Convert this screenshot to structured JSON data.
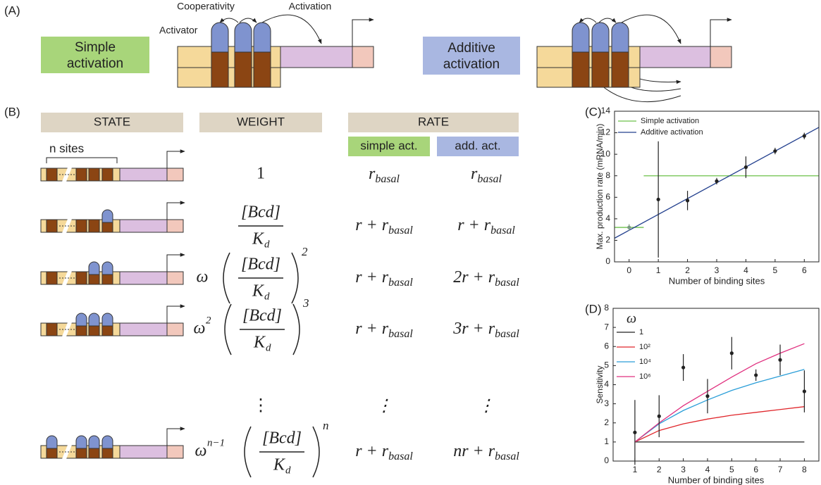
{
  "panel_a": {
    "label": "(A)",
    "simple_box": [
      "Simple",
      "activation"
    ],
    "additive_box": [
      "Additive",
      "activation"
    ],
    "cooperativity": "Cooperativity",
    "activation": "Activation",
    "activator": "Activator"
  },
  "panel_b": {
    "label": "(B)",
    "headers": {
      "state": "STATE",
      "weight": "WEIGHT",
      "rate": "RATE",
      "simple": "simple act.",
      "additive": "add. act."
    },
    "n_sites": "n sites",
    "rows": [
      {
        "weight": {
          "text": "1"
        },
        "simple": {
          "main": "r",
          "sub": "basal"
        },
        "additive": {
          "main": "r",
          "sub": "basal"
        }
      },
      {
        "weight": {
          "num": "[Bcd]",
          "den": "K",
          "den_sub": "d"
        },
        "simple": {
          "main": "r + r",
          "sub": "basal"
        },
        "additive": {
          "main": "r + r",
          "sub": "basal"
        }
      },
      {
        "weight": {
          "prefix": "ω",
          "num": "[Bcd]",
          "den": "K",
          "den_sub": "d",
          "power": "2"
        },
        "simple": {
          "main": "r + r",
          "sub": "basal"
        },
        "additive": {
          "main": "2r + r",
          "sub": "basal"
        }
      },
      {
        "weight": {
          "prefix": "ω",
          "prefix_sup": "2",
          "num": "[Bcd]",
          "den": "K",
          "den_sub": "d",
          "power": "3"
        },
        "simple": {
          "main": "r + r",
          "sub": "basal"
        },
        "additive": {
          "main": "3r + r",
          "sub": "basal"
        }
      },
      {
        "weight": {
          "text": "⋮"
        },
        "simple": {
          "main": "⋮"
        },
        "additive": {
          "main": "⋮"
        }
      },
      {
        "weight": {
          "prefix": "ω",
          "prefix_sup": "n−1",
          "num": "[Bcd]",
          "den": "K",
          "den_sub": "d",
          "power": "n"
        },
        "simple": {
          "main": "r + r",
          "sub": "basal"
        },
        "additive": {
          "main": "nr + r",
          "sub": "basal"
        }
      }
    ]
  },
  "chart_data": [
    {
      "type": "line",
      "label": "(C)",
      "xlabel": "Number of binding sites",
      "ylabel": "Max. production rate (mRNA/min)",
      "xlim": [
        -0.5,
        6.5
      ],
      "ylim": [
        0,
        14
      ],
      "xticks": [
        0,
        1,
        2,
        3,
        4,
        5,
        6
      ],
      "yticks": [
        0,
        2,
        4,
        6,
        8,
        10,
        12,
        14
      ],
      "grid": false,
      "legend": "upper left",
      "series": [
        {
          "name": "Simple activation",
          "color": "#6cc04a",
          "x": [
            -0.5,
            0.5,
            0.5,
            0.5,
            6.5
          ],
          "values": [
            3.2,
            3.2,
            null,
            8,
            8
          ]
        },
        {
          "name": "Additive activation",
          "color": "#23408e",
          "x": [
            -0.5,
            6.5
          ],
          "values": [
            2.2,
            12.5
          ]
        }
      ],
      "points": {
        "x": [
          0,
          1,
          2,
          3,
          4,
          5,
          6
        ],
        "values": [
          3.2,
          5.8,
          5.7,
          7.5,
          8.8,
          10.3,
          11.7
        ],
        "errors": [
          0.3,
          5.4,
          0.9,
          0.3,
          1.0,
          0.3,
          0.3
        ],
        "colors": [
          "#7c9b84",
          "#222222",
          "#222222",
          "#222222",
          "#222222",
          "#222222",
          "#222222"
        ]
      }
    },
    {
      "type": "line",
      "label": "(D)",
      "xlabel": "Number of binding sites",
      "ylabel": "Sensitivity",
      "legend_title": "ω",
      "xlim": [
        0.1,
        8.6
      ],
      "ylim": [
        0,
        8
      ],
      "xticks": [
        1,
        2,
        3,
        4,
        5,
        6,
        7,
        8
      ],
      "yticks": [
        0,
        1,
        2,
        3,
        4,
        5,
        6,
        7,
        8
      ],
      "grid": false,
      "legend": "upper left",
      "x": [
        1,
        2,
        3,
        4,
        5,
        6,
        7,
        8
      ],
      "series": [
        {
          "name": "1",
          "color": "#222222",
          "values": [
            1,
            1,
            1,
            1,
            1,
            1,
            1,
            1
          ]
        },
        {
          "name": "10²",
          "color": "#e0262b",
          "values": [
            1,
            1.6,
            1.95,
            2.2,
            2.4,
            2.55,
            2.7,
            2.85
          ]
        },
        {
          "name": "10⁴",
          "color": "#2a9ed8",
          "values": [
            1,
            1.95,
            2.65,
            3.2,
            3.7,
            4.1,
            4.45,
            4.8
          ]
        },
        {
          "name": "10⁶",
          "color": "#e0307f",
          "values": [
            1,
            2.0,
            2.9,
            3.65,
            4.4,
            5.1,
            5.65,
            6.15
          ]
        }
      ],
      "points": {
        "x": [
          1,
          2,
          3,
          4,
          5,
          6,
          7,
          8
        ],
        "values": [
          1.5,
          2.35,
          4.9,
          3.4,
          5.65,
          4.5,
          5.3,
          3.65
        ],
        "errors": [
          1.7,
          1.1,
          0.7,
          0.9,
          0.85,
          0.3,
          0.8,
          1.1
        ],
        "colors": [
          "#222222",
          "#222222",
          "#222222",
          "#222222",
          "#222222",
          "#222222",
          "#222222",
          "#222222"
        ]
      }
    }
  ]
}
